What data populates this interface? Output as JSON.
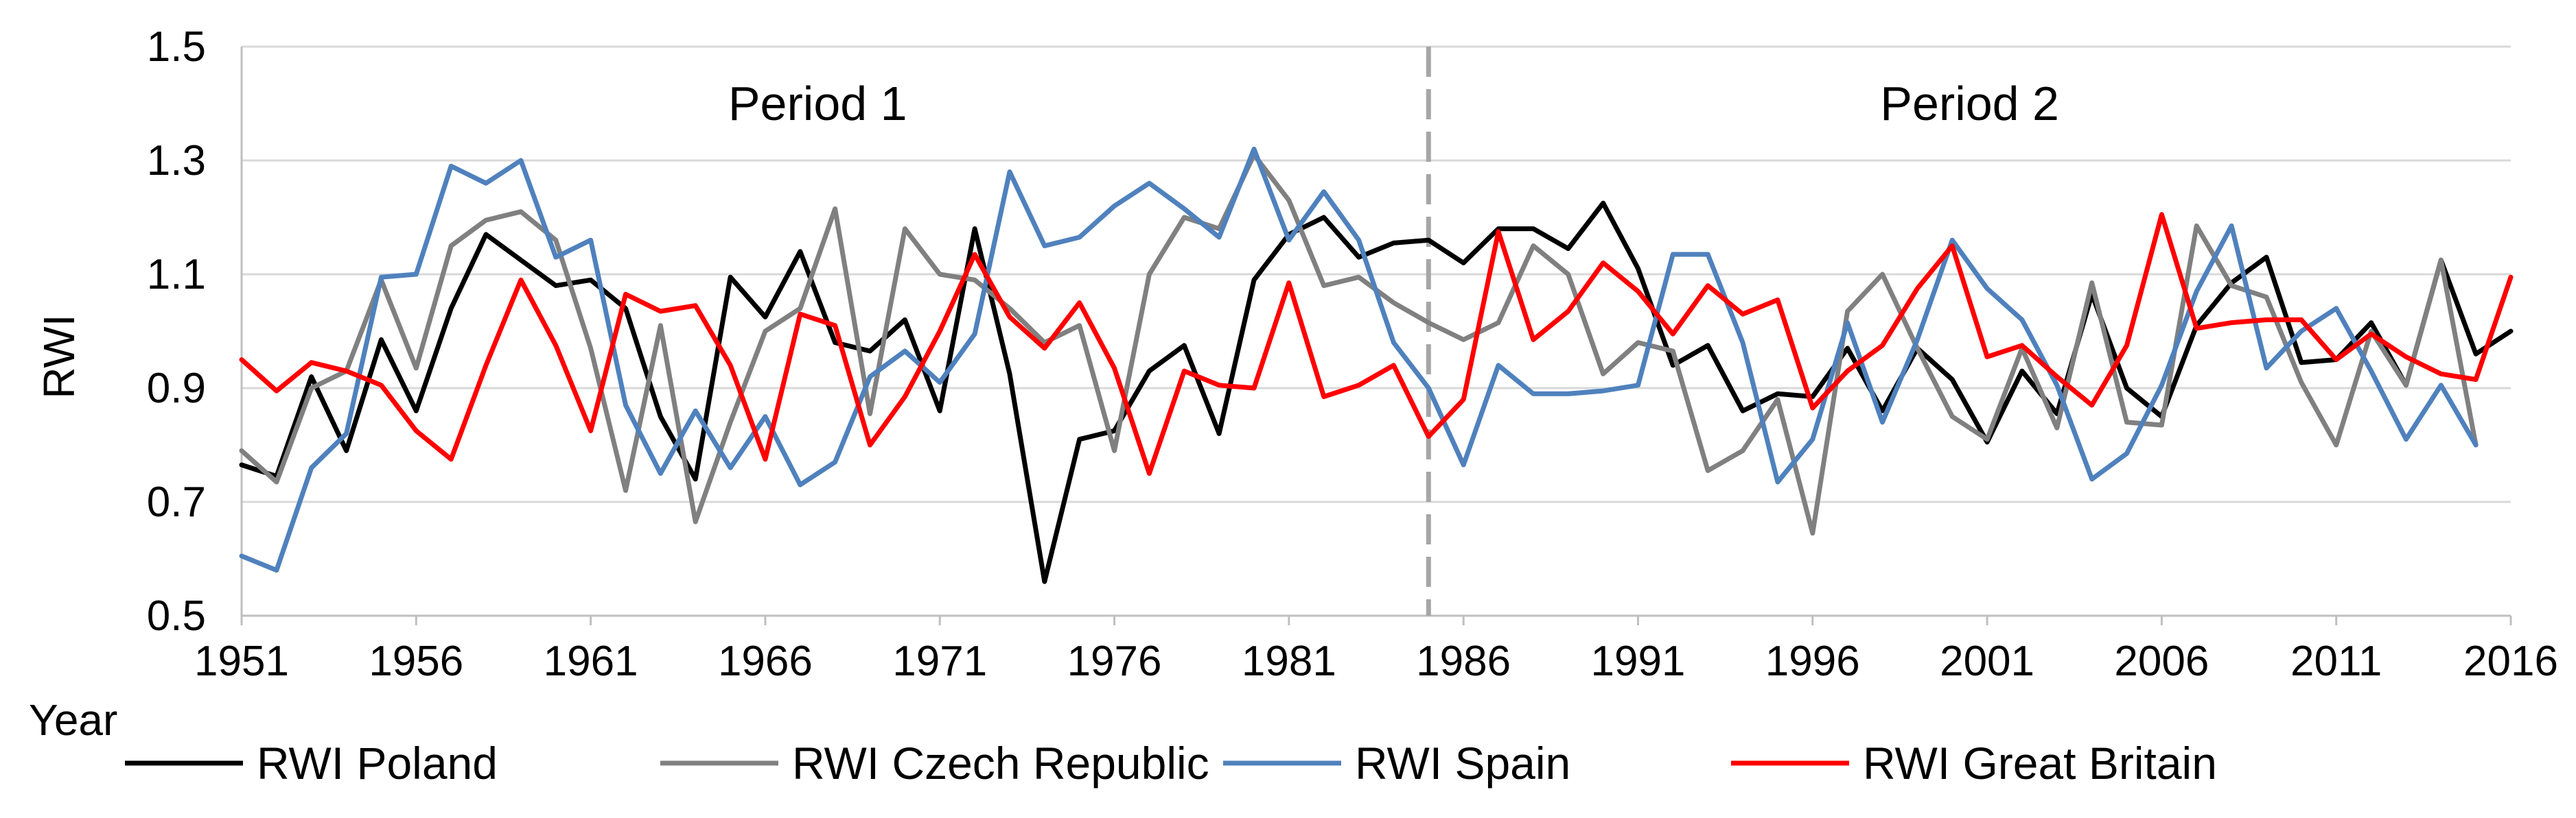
{
  "chart_data": {
    "type": "line",
    "title": "",
    "xlabel": "Year",
    "ylabel": "RWI",
    "ylim": [
      0.5,
      1.5
    ],
    "yticks": [
      "0.5",
      "0.7",
      "0.9",
      "1.1",
      "1.3",
      "1.5"
    ],
    "xlim": [
      1951,
      2016
    ],
    "xticks": [
      "1951",
      "1956",
      "1961",
      "1966",
      "1971",
      "1976",
      "1981",
      "1986",
      "1991",
      "1996",
      "2001",
      "2006",
      "2011",
      "2016"
    ],
    "grid": "horizontal",
    "legend_position": "bottom",
    "divider_year": 1985,
    "annotations": [
      {
        "text": "Period 1",
        "year": 1967.5,
        "value": 1.4
      },
      {
        "text": "Period 2",
        "year": 2000.5,
        "value": 1.4
      }
    ],
    "series": [
      {
        "name": "RWI Poland",
        "color": "#000000",
        "start_year": 1951,
        "values": [
          0.765,
          0.745,
          0.92,
          0.79,
          0.985,
          0.86,
          1.04,
          1.17,
          1.125,
          1.08,
          1.09,
          1.04,
          0.85,
          0.74,
          1.095,
          1.025,
          1.14,
          0.98,
          0.965,
          1.02,
          0.86,
          1.18,
          0.925,
          0.56,
          0.81,
          0.825,
          0.93,
          0.975,
          0.82,
          1.09,
          1.17,
          1.2,
          1.13,
          1.155,
          1.16,
          1.12,
          1.18,
          1.18,
          1.145,
          1.225,
          1.11,
          0.94,
          0.975,
          0.86,
          0.89,
          0.885,
          0.97,
          0.86,
          0.97,
          0.915,
          0.805,
          0.93,
          0.855,
          1.065,
          0.9,
          0.85,
          1.01,
          1.085,
          1.13,
          0.945,
          0.95,
          1.015,
          0.905,
          1.125,
          0.96,
          1.0
        ]
      },
      {
        "name": "RWI Czech Republic",
        "color": "#808080",
        "start_year": 1951,
        "values": [
          0.79,
          0.735,
          0.9,
          0.93,
          1.09,
          0.935,
          1.15,
          1.195,
          1.21,
          1.16,
          0.97,
          0.72,
          1.01,
          0.665,
          0.84,
          1.0,
          1.04,
          1.215,
          0.855,
          1.18,
          1.1,
          1.09,
          1.04,
          0.98,
          1.01,
          0.79,
          1.1,
          1.2,
          1.18,
          1.31,
          1.23,
          1.08,
          1.095,
          1.05,
          1.015,
          0.985,
          1.015,
          1.15,
          1.1,
          0.925,
          0.98,
          0.965,
          0.755,
          0.79,
          0.88,
          0.645,
          1.035,
          1.1,
          0.97,
          0.85,
          0.81,
          0.97,
          0.83,
          1.085,
          0.84,
          0.835,
          1.185,
          1.08,
          1.06,
          0.91,
          0.8,
          1.0,
          0.905,
          1.125,
          0.8
        ]
      },
      {
        "name": "RWI Spain",
        "color": "#4f81bd",
        "start_year": 1951,
        "values": [
          0.605,
          0.58,
          0.76,
          0.82,
          1.095,
          1.1,
          1.29,
          1.26,
          1.3,
          1.13,
          1.16,
          0.87,
          0.75,
          0.86,
          0.76,
          0.85,
          0.73,
          0.77,
          0.92,
          0.965,
          0.91,
          0.995,
          1.28,
          1.15,
          1.165,
          1.22,
          1.26,
          1.215,
          1.165,
          1.32,
          1.16,
          1.245,
          1.16,
          0.98,
          0.9,
          0.765,
          0.94,
          0.89,
          0.89,
          0.895,
          0.905,
          1.135,
          1.135,
          0.98,
          0.735,
          0.81,
          1.015,
          0.84,
          0.985,
          1.16,
          1.075,
          1.02,
          0.905,
          0.74,
          0.785,
          0.905,
          1.07,
          1.185,
          0.935,
          1.0,
          1.04,
          0.93,
          0.81,
          0.905,
          0.8
        ]
      },
      {
        "name": "RWI Great Britain",
        "color": "#ff0000",
        "start_year": 1951,
        "values": [
          0.95,
          0.895,
          0.945,
          0.93,
          0.905,
          0.825,
          0.775,
          0.94,
          1.09,
          0.975,
          0.825,
          1.065,
          1.035,
          1.045,
          0.94,
          0.775,
          1.03,
          1.01,
          0.8,
          0.885,
          1.0,
          1.135,
          1.025,
          0.97,
          1.05,
          0.935,
          0.75,
          0.93,
          0.905,
          0.9,
          1.085,
          0.885,
          0.905,
          0.94,
          0.815,
          0.88,
          1.175,
          0.985,
          1.035,
          1.12,
          1.07,
          0.995,
          1.08,
          1.03,
          1.055,
          0.865,
          0.93,
          0.975,
          1.075,
          1.15,
          0.955,
          0.975,
          0.92,
          0.87,
          0.975,
          1.205,
          1.005,
          1.015,
          1.02,
          1.02,
          0.95,
          0.995,
          0.955,
          0.925,
          0.915,
          1.095
        ]
      }
    ]
  }
}
